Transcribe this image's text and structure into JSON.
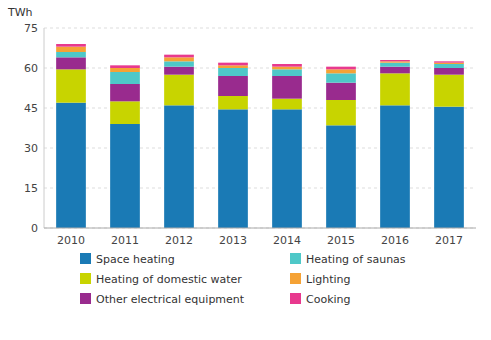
{
  "chart_data": {
    "type": "bar",
    "stacked": true,
    "grid": true,
    "legend": "bottom",
    "y_label": "TWh",
    "categories": [
      "2010",
      "2011",
      "2012",
      "2013",
      "2014",
      "2015",
      "2016",
      "2017"
    ],
    "series": [
      {
        "name": "Space heating",
        "color": "#1a7ab5",
        "values": [
          47.0,
          39.0,
          46.0,
          44.5,
          44.5,
          38.5,
          46.0,
          45.5
        ]
      },
      {
        "name": "Heating of domestic water",
        "color": "#c8d400",
        "values": [
          12.5,
          8.5,
          11.5,
          5.0,
          4.0,
          9.5,
          12.0,
          12.0
        ]
      },
      {
        "name": "Other electrical equipment",
        "color": "#992b8e",
        "values": [
          4.5,
          6.5,
          3.0,
          7.5,
          8.5,
          6.5,
          2.5,
          2.5
        ]
      },
      {
        "name": "Heating of saunas",
        "color": "#4ec8c8",
        "values": [
          2.0,
          4.5,
          2.0,
          3.0,
          2.5,
          3.5,
          1.5,
          1.5
        ]
      },
      {
        "name": "Lighting",
        "color": "#f5a235",
        "values": [
          2.0,
          1.5,
          1.5,
          1.0,
          1.0,
          1.5,
          0.5,
          0.5
        ]
      },
      {
        "name": "Cooking",
        "color": "#e8398e",
        "values": [
          1.0,
          1.0,
          1.0,
          1.0,
          1.0,
          1.0,
          0.5,
          0.5
        ]
      }
    ],
    "ylim": [
      0,
      75
    ],
    "yticks": [
      0,
      15,
      30,
      45,
      60,
      75
    ]
  }
}
